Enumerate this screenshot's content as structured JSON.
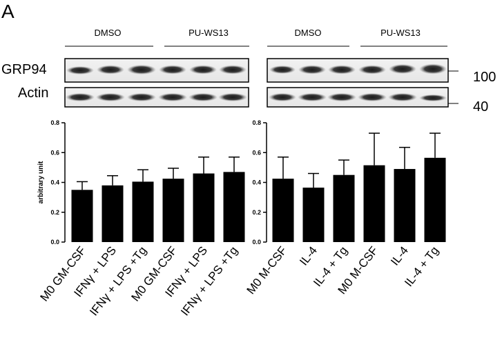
{
  "figure": {
    "panel_letter": "A",
    "blot_rows": [
      "GRP94",
      "Actin"
    ],
    "mw_markers": [
      "100",
      "40"
    ],
    "groups_left": [
      "DMSO",
      "PU-WS13"
    ],
    "groups_right": [
      "DMSO",
      "PU-WS13"
    ]
  },
  "chart_data": [
    {
      "type": "bar",
      "ylabel": "arbitrary unit",
      "ylim": [
        0.0,
        0.8
      ],
      "yticks": [
        "0.0",
        "0.2",
        "0.4",
        "0.6",
        "0.8"
      ],
      "categories": [
        "M0 GM-CSF",
        "IFNγ + LPS",
        "IFNγ + LPS +Tg",
        "M0 GM-CSF",
        "IFNγ + LPS",
        "IFNγ + LPS +Tg"
      ],
      "values": [
        0.35,
        0.38,
        0.405,
        0.425,
        0.46,
        0.47
      ],
      "errors": [
        0.055,
        0.065,
        0.08,
        0.07,
        0.11,
        0.1
      ],
      "bar_color": "#000000"
    },
    {
      "type": "bar",
      "ylabel": "",
      "ylim": [
        0.0,
        0.8
      ],
      "yticks": [
        "0.0",
        "0.2",
        "0.4",
        "0.6",
        "0.8"
      ],
      "categories": [
        "M0 M-CSF",
        "IL-4",
        "IL-4 + Tg",
        "M0 M-CSF",
        "IL-4",
        "IL-4 + Tg"
      ],
      "values": [
        0.425,
        0.365,
        0.45,
        0.515,
        0.49,
        0.565
      ],
      "errors": [
        0.145,
        0.095,
        0.1,
        0.215,
        0.145,
        0.165
      ],
      "bar_color": "#000000"
    }
  ]
}
